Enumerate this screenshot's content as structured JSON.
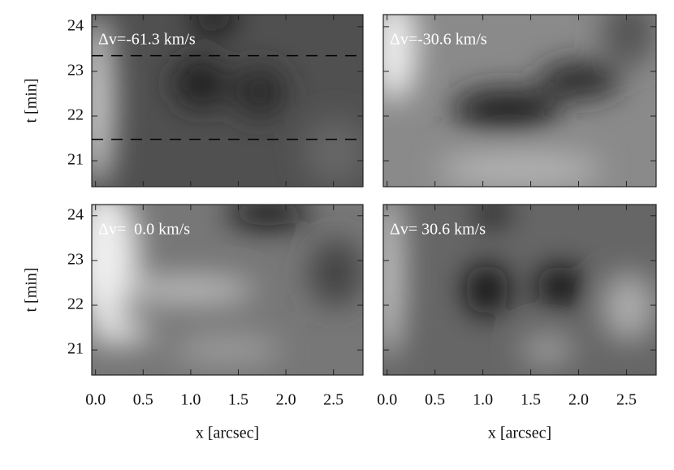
{
  "chart_data": [
    {
      "type": "image",
      "annotation": "Δv=-61.3 km/s",
      "ylabel": "t [min]",
      "xlim": [
        -0.04,
        2.81
      ],
      "ylim": [
        20.42,
        24.27
      ],
      "xticks": [
        0,
        0.5,
        1,
        1.5,
        2,
        2.5
      ],
      "yticks": [
        21,
        22,
        23,
        24
      ],
      "hlines": [
        23.35,
        21.48
      ]
    },
    {
      "type": "image",
      "annotation": "Δv=-30.6 km/s",
      "xlim": [
        -0.04,
        2.81
      ],
      "ylim": [
        20.42,
        24.27
      ],
      "xticks": [
        0,
        0.5,
        1,
        1.5,
        2,
        2.5
      ],
      "yticks": [
        21,
        22,
        23,
        24
      ]
    },
    {
      "type": "image",
      "annotation": "Δv=  0.0 km/s",
      "ylabel": "t [min]",
      "xlabel": "x [arcsec]",
      "xlim": [
        -0.04,
        2.81
      ],
      "ylim": [
        20.44,
        24.25
      ],
      "xticks": [
        {
          "value": 0,
          "label": "0.0"
        },
        0.5,
        {
          "value": 1,
          "label": "1.0"
        },
        1.5,
        {
          "value": 2,
          "label": "2.0"
        },
        2.5
      ],
      "yticks": [
        21,
        22,
        23,
        24
      ]
    },
    {
      "type": "image",
      "annotation": "Δv= 30.6 km/s",
      "xlabel": "x [arcsec]",
      "xlim": [
        -0.04,
        2.81
      ],
      "ylim": [
        20.44,
        24.25
      ],
      "xticks": [
        {
          "value": 0,
          "label": "0.0"
        },
        0.5,
        {
          "value": 1,
          "label": "1.0"
        },
        1.5,
        {
          "value": 2,
          "label": "2.0"
        },
        2.5
      ],
      "yticks": [
        21,
        22,
        23,
        24
      ]
    }
  ]
}
